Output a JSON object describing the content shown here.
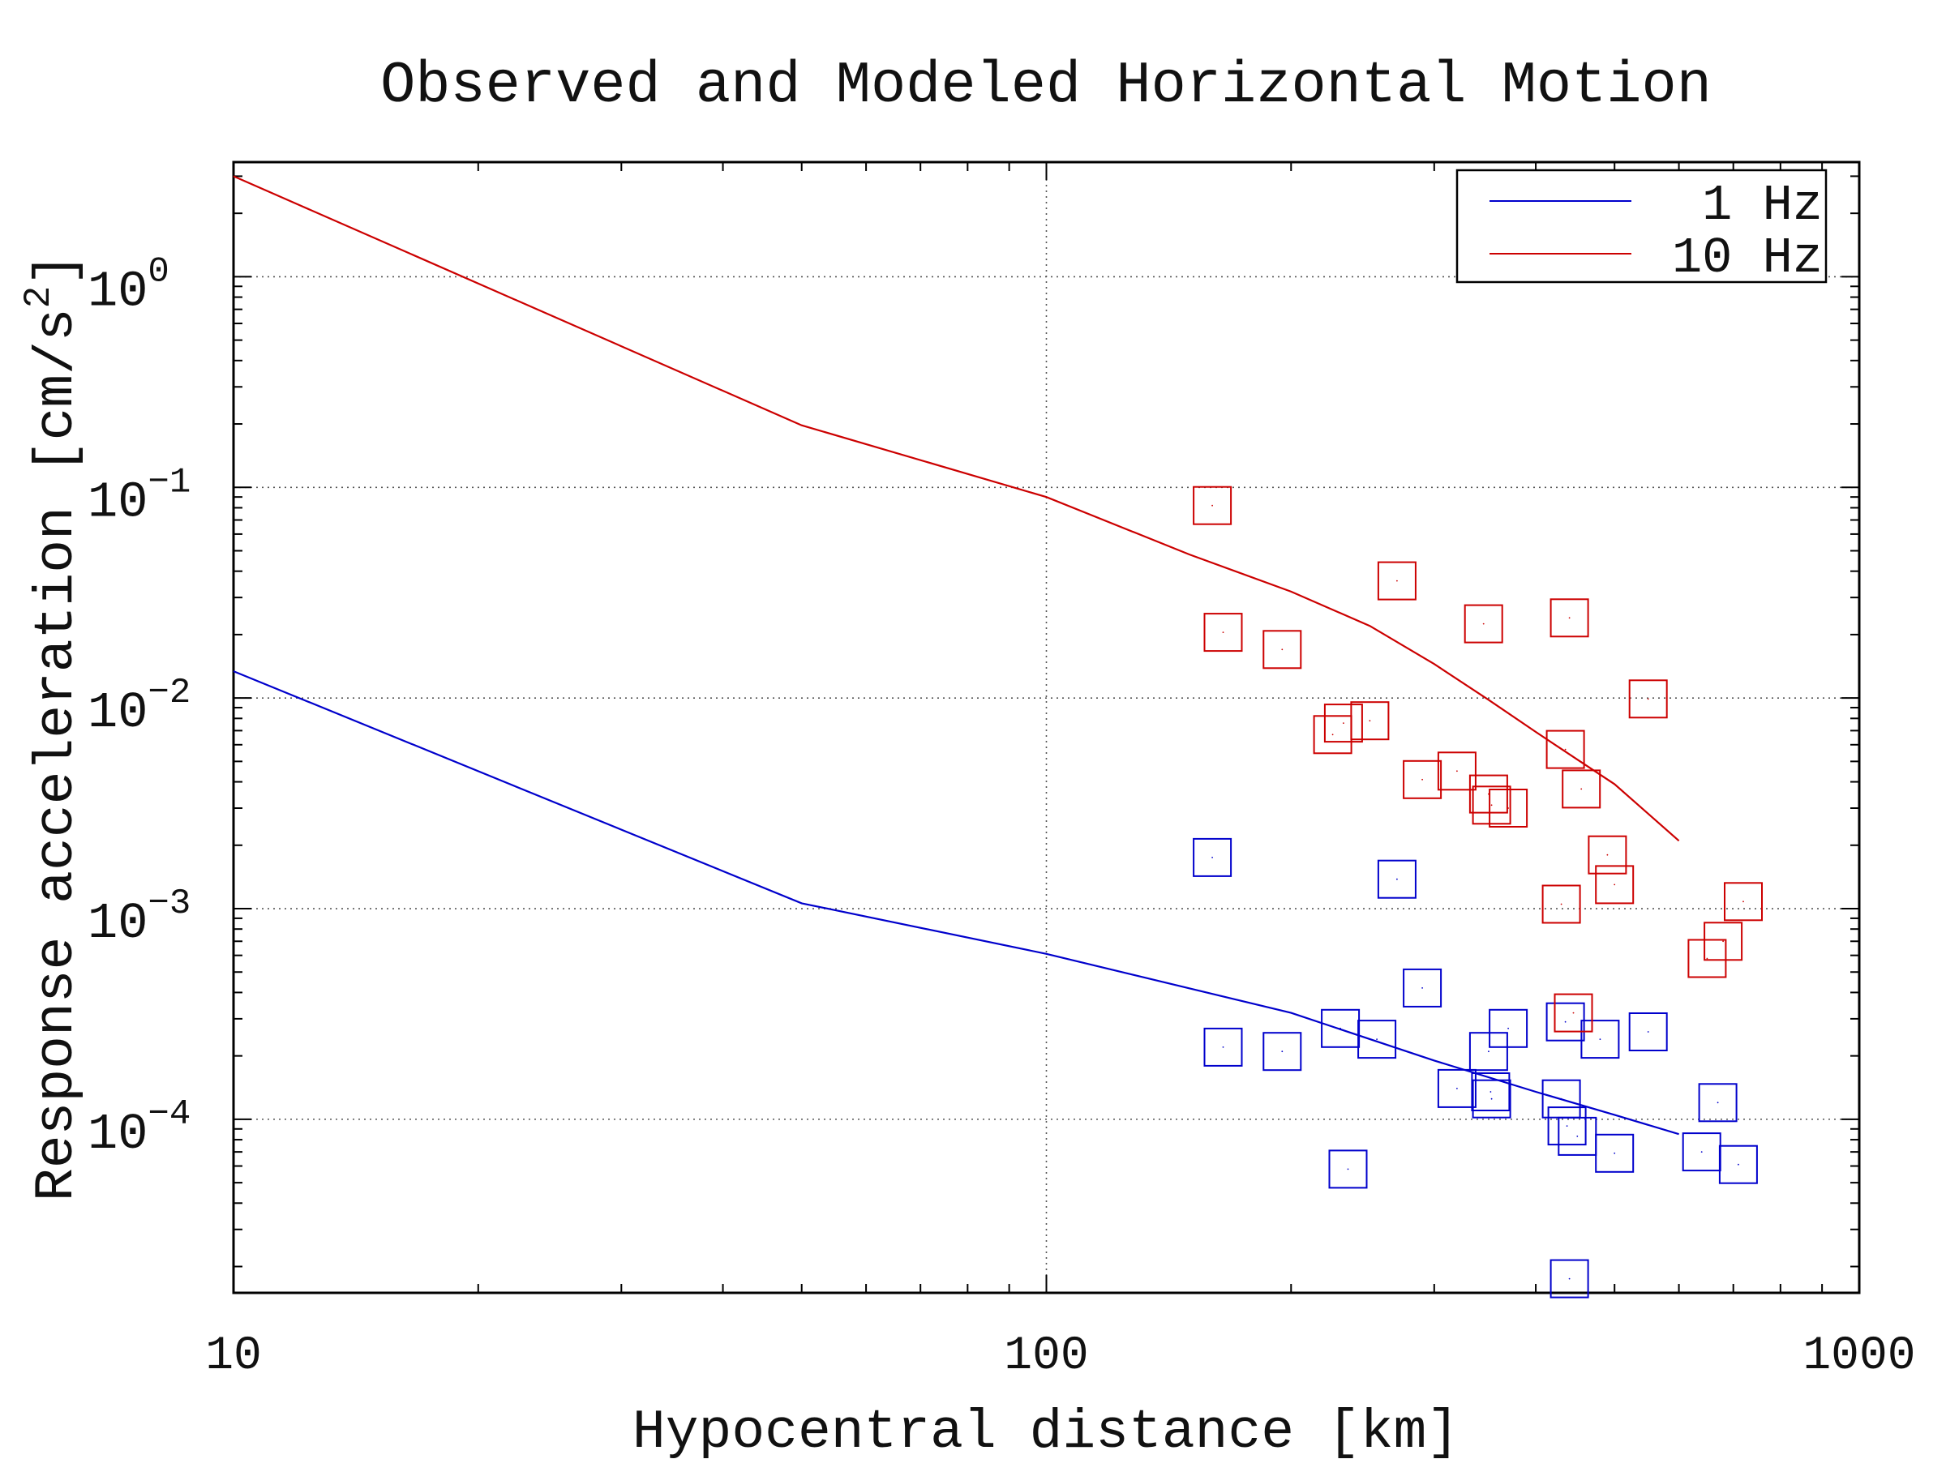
{
  "chart_data": {
    "type": "scatter",
    "title": "Observed and Modeled Horizontal Motion",
    "xlabel": "Hypocentral distance [km]",
    "ylabel": "Response acceleration [cm/s",
    "ylabel_superscript": "2",
    "ylabel_close": "]",
    "xscale": "log",
    "yscale": "log",
    "xlim": [
      10,
      1000
    ],
    "ylim": [
      1.5e-05,
      3.5
    ],
    "x_ticks": [
      {
        "value": 10,
        "label": "10"
      },
      {
        "value": 100,
        "label": "100"
      },
      {
        "value": 1000,
        "label": "1000"
      }
    ],
    "y_ticks": [
      {
        "value": 1,
        "base": "10",
        "exp": "0"
      },
      {
        "value": 0.1,
        "base": "10",
        "exp": "−1"
      },
      {
        "value": 0.01,
        "base": "10",
        "exp": "−2"
      },
      {
        "value": 0.001,
        "base": "10",
        "exp": "−3"
      },
      {
        "value": 0.0001,
        "base": "10",
        "exp": "−4"
      }
    ],
    "grid": true,
    "legend_position": "top-right",
    "series": [
      {
        "name": "1 Hz",
        "color": "#0000cc",
        "model_x": [
          10,
          50,
          100,
          200,
          300,
          400,
          500,
          600
        ],
        "model_y": [
          0.0134,
          0.00106,
          0.00061,
          0.00032,
          0.00019,
          0.000135,
          0.000105,
          8.5e-05
        ],
        "observed": [
          [
            160,
            0.00175
          ],
          [
            165,
            0.00022
          ],
          [
            195,
            0.00021
          ],
          [
            230,
            0.00027
          ],
          [
            235,
            5.8e-05
          ],
          [
            255,
            0.00024
          ],
          [
            270,
            0.00138
          ],
          [
            290,
            0.00042
          ],
          [
            320,
            0.00014
          ],
          [
            350,
            0.00021
          ],
          [
            352,
            0.000135
          ],
          [
            353,
            0.000125
          ],
          [
            370,
            0.00027
          ],
          [
            430,
            0.000125
          ],
          [
            435,
            0.00029
          ],
          [
            437,
            9.3e-05
          ],
          [
            440,
            1.75e-05
          ],
          [
            450,
            8.3e-05
          ],
          [
            480,
            0.00024
          ],
          [
            500,
            6.9e-05
          ],
          [
            550,
            0.00026
          ],
          [
            640,
            7e-05
          ],
          [
            670,
            0.00012
          ],
          [
            710,
            6.1e-05
          ]
        ]
      },
      {
        "name": "10 Hz",
        "color": "#cc0000",
        "model_x": [
          10,
          50,
          100,
          150,
          200,
          250,
          300,
          350,
          400,
          450,
          500,
          600
        ],
        "model_y": [
          3.0,
          0.197,
          0.09,
          0.048,
          0.032,
          0.022,
          0.0145,
          0.0098,
          0.0069,
          0.0051,
          0.0039,
          0.0021
        ],
        "observed": [
          [
            160,
            0.082
          ],
          [
            165,
            0.0205
          ],
          [
            195,
            0.017
          ],
          [
            225,
            0.0067
          ],
          [
            232,
            0.0076
          ],
          [
            250,
            0.0078
          ],
          [
            270,
            0.036
          ],
          [
            290,
            0.0041
          ],
          [
            320,
            0.0045
          ],
          [
            345,
            0.0225
          ],
          [
            350,
            0.0035
          ],
          [
            353,
            0.0031
          ],
          [
            370,
            0.003
          ],
          [
            430,
            0.00105
          ],
          [
            435,
            0.0057
          ],
          [
            440,
            0.024
          ],
          [
            445,
            0.00032
          ],
          [
            455,
            0.0037
          ],
          [
            490,
            0.0018
          ],
          [
            500,
            0.0013
          ],
          [
            550,
            0.0099
          ],
          [
            650,
            0.00058
          ],
          [
            680,
            0.0007
          ],
          [
            720,
            0.00108
          ]
        ]
      }
    ]
  }
}
